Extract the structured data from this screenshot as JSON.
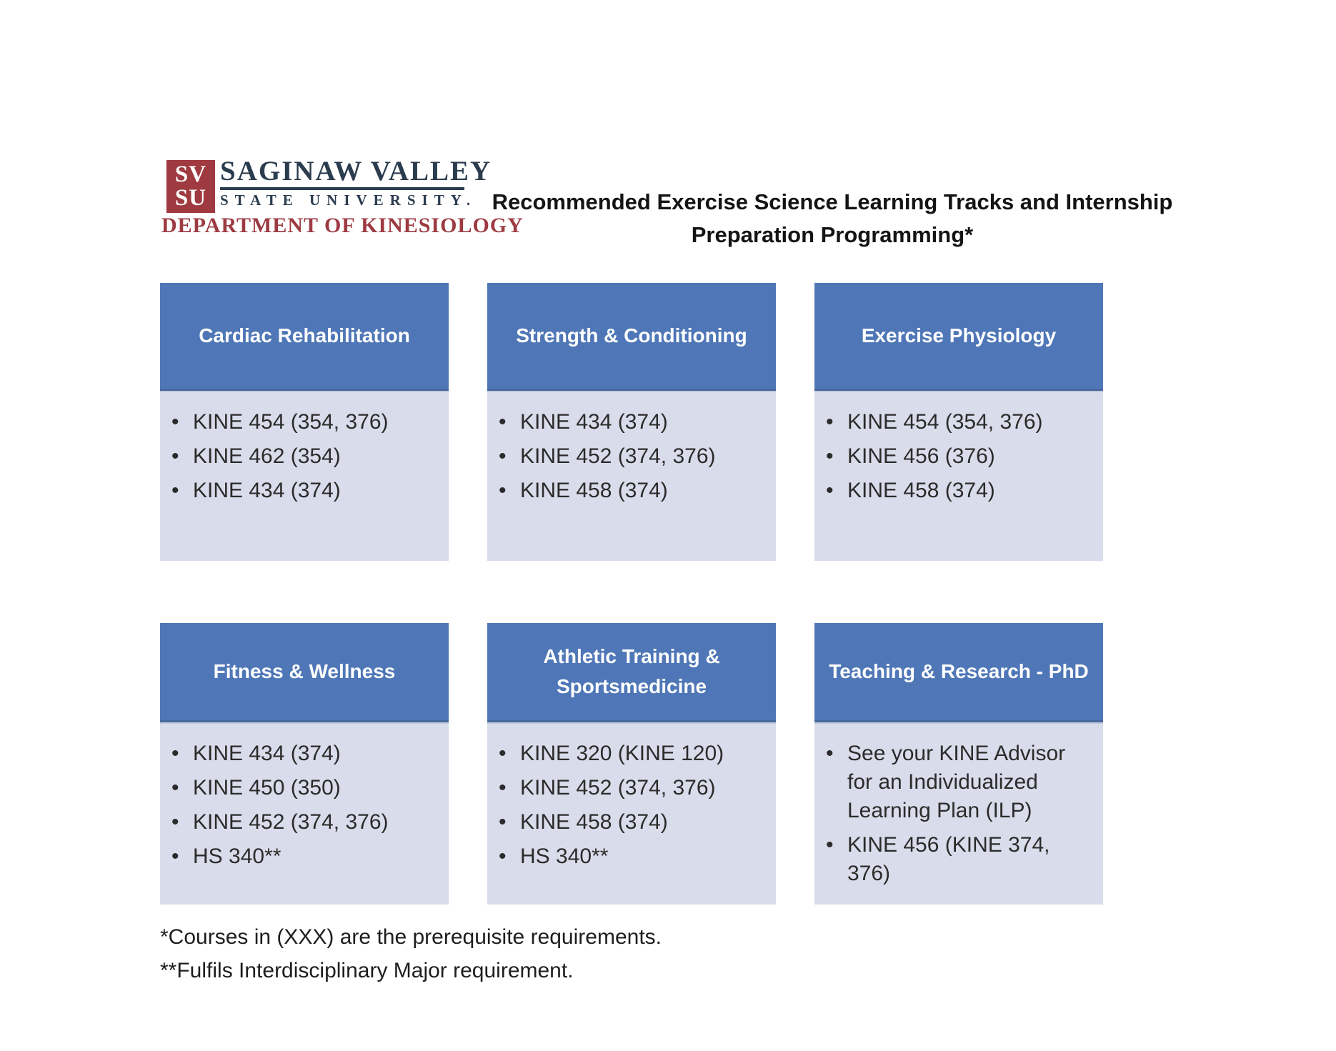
{
  "logo": {
    "monogram_line1": "SV",
    "monogram_line2": "SU",
    "name_line1": "SAGINAW VALLEY",
    "name_line2": "STATE UNIVERSITY.",
    "department": "DEPARTMENT OF KINESIOLOGY",
    "colors": {
      "red": "#9e3a40",
      "navy": "#2b3c4e"
    }
  },
  "title": {
    "line1": "Recommended Exercise Science Learning Tracks and Internship",
    "line2": "Preparation Programming*"
  },
  "tracks": [
    {
      "title": "Cardiac Rehabilitation",
      "courses": [
        "KINE 454 (354, 376)",
        "KINE 462 (354)",
        "KINE 434 (374)"
      ]
    },
    {
      "title": "Strength & Conditioning",
      "courses": [
        "KINE 434 (374)",
        "KINE 452 (374, 376)",
        "KINE 458 (374)"
      ]
    },
    {
      "title": "Exercise Physiology",
      "courses": [
        "KINE 454 (354, 376)",
        "KINE 456 (376)",
        "KINE 458 (374)"
      ]
    },
    {
      "title": "Fitness & Wellness",
      "courses": [
        "KINE 434 (374)",
        "KINE 450 (350)",
        "KINE 452 (374, 376)",
        "HS 340**"
      ]
    },
    {
      "title": "Athletic Training & Sportsmedicine",
      "courses": [
        "KINE 320 (KINE 120)",
        "KINE 452 (374, 376)",
        "KINE 458 (374)",
        "HS 340**"
      ]
    },
    {
      "title": "Teaching & Research - PhD",
      "courses": [
        "See your KINE Advisor for an Individualized Learning Plan (ILP)",
        "KINE 456 (KINE 374, 376)"
      ]
    }
  ],
  "footnotes": [
    "*Courses in (XXX) are the prerequisite requirements.",
    "**Fulfils Interdisciplinary Major requirement."
  ],
  "colors": {
    "header_blue": "#4f77b7",
    "body_blue": "#d9dcea",
    "text": "#2b2b2b"
  }
}
